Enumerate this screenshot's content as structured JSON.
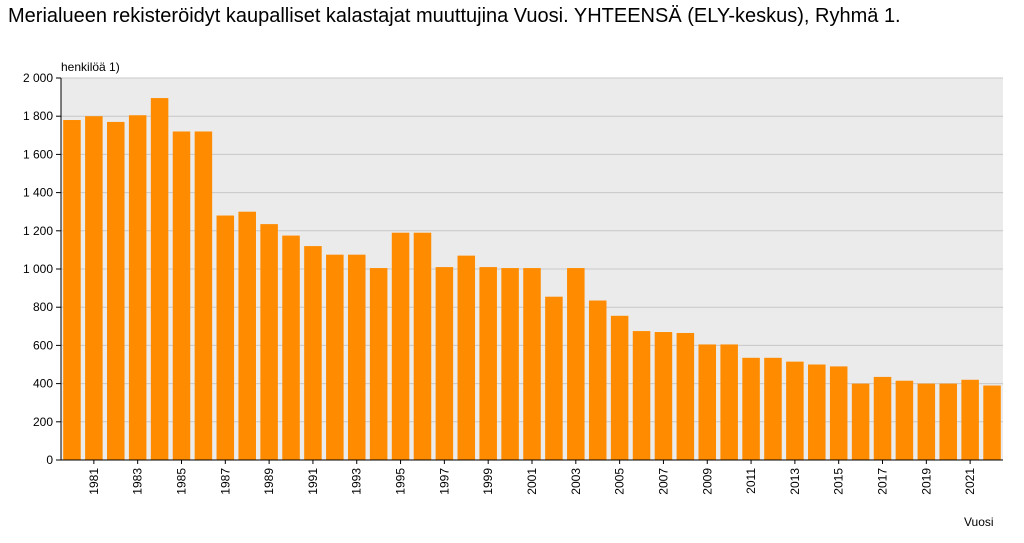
{
  "title": "Merialueen rekisteröidyt kaupalliset kalastajat muuttujina Vuosi. YHTEENSÄ (ELY-keskus), Ryhmä 1.",
  "colors": {
    "bar": "#ff8c00",
    "plot_bg": "#ebebeb",
    "grid": "#c8c8c8",
    "axis": "#000000"
  },
  "chart_data": {
    "type": "bar",
    "title": "Merialueen rekisteröidyt kaupalliset kalastajat muuttujina Vuosi. YHTEENSÄ (ELY-keskus), Ryhmä 1.",
    "ylabel": "henkilöä 1)",
    "xlabel": "Vuosi",
    "ylim": [
      0,
      2000
    ],
    "yticks": [
      0,
      200,
      400,
      600,
      800,
      1000,
      1200,
      1400,
      1600,
      1800,
      2000
    ],
    "ytick_labels": [
      "0",
      "200",
      "400",
      "600",
      "800",
      "1 000",
      "1 200",
      "1 400",
      "1 600",
      "1 800",
      "2 000"
    ],
    "grid": true,
    "categories": [
      "1980",
      "1981",
      "1982",
      "1983",
      "1984",
      "1985",
      "1986",
      "1987",
      "1988",
      "1989",
      "1990",
      "1991",
      "1992",
      "1993",
      "1994",
      "1995",
      "1996",
      "1997",
      "1998",
      "1999",
      "2000",
      "2001",
      "2002",
      "2003",
      "2004",
      "2005",
      "2006",
      "2007",
      "2008",
      "2009",
      "2010",
      "2011",
      "2012",
      "2013",
      "2014",
      "2015",
      "2016",
      "2017",
      "2018",
      "2019",
      "2020",
      "2021",
      "2022"
    ],
    "xtick_labels": [
      "1981",
      "1983",
      "1985",
      "1987",
      "1989",
      "1991",
      "1993",
      "1995",
      "1997",
      "1999",
      "2001",
      "2003",
      "2005",
      "2007",
      "2009",
      "2011",
      "2013",
      "2015",
      "2017",
      "2019",
      "2021"
    ],
    "values": [
      1780,
      1800,
      1770,
      1805,
      1895,
      1720,
      1720,
      1280,
      1300,
      1235,
      1175,
      1120,
      1075,
      1075,
      1005,
      1190,
      1190,
      1010,
      1070,
      1010,
      1005,
      1005,
      855,
      1005,
      835,
      755,
      675,
      670,
      665,
      605,
      605,
      535,
      535,
      515,
      500,
      490,
      400,
      435,
      415,
      400,
      400,
      420,
      390
    ]
  }
}
